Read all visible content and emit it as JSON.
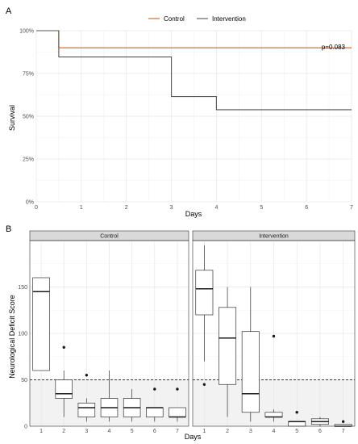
{
  "chart_data": [
    {
      "type": "line",
      "panel_label": "A",
      "xlabel": "Days",
      "ylabel": "Survival",
      "xlim": [
        0,
        7
      ],
      "ylim": [
        0,
        100
      ],
      "x_ticks": [
        0,
        1,
        2,
        3,
        4,
        5,
        6,
        7
      ],
      "y_ticks": [
        0,
        25,
        50,
        75,
        100
      ],
      "y_tick_labels": [
        "0%",
        "25%",
        "50%",
        "75%",
        "100%"
      ],
      "grid": true,
      "legend_position": "top",
      "annotation": "p=0.083",
      "series": [
        {
          "name": "Control",
          "color": "#d95f0e",
          "step_points": [
            [
              0,
              100
            ],
            [
              0.5,
              100
            ],
            [
              0.5,
              90
            ],
            [
              7,
              90
            ]
          ]
        },
        {
          "name": "Intervention",
          "color": "#555555",
          "step_points": [
            [
              0,
              100
            ],
            [
              0.5,
              100
            ],
            [
              0.5,
              84.6
            ],
            [
              3,
              84.6
            ],
            [
              3,
              61.5
            ],
            [
              4,
              61.5
            ],
            [
              4,
              53.8
            ],
            [
              7,
              53.8
            ]
          ]
        }
      ]
    },
    {
      "type": "box",
      "panel_label": "B",
      "xlabel": "Days",
      "ylabel": "Neurological Deficit Score",
      "ylim": [
        0,
        200
      ],
      "y_ticks": [
        0,
        50,
        100,
        150
      ],
      "reference_line": 50,
      "grid": true,
      "facets": [
        {
          "name": "Control",
          "days": [
            1,
            2,
            3,
            4,
            5,
            6,
            7
          ],
          "boxes": [
            {
              "day": 1,
              "min": 60,
              "q1": 60,
              "median": 145,
              "q3": 160,
              "max": 160,
              "outliers": []
            },
            {
              "day": 2,
              "min": 10,
              "q1": 30,
              "median": 35,
              "q3": 50,
              "max": 60,
              "outliers": [
                85
              ]
            },
            {
              "day": 3,
              "min": 5,
              "q1": 10,
              "median": 20,
              "q3": 25,
              "max": 30,
              "outliers": [
                55
              ]
            },
            {
              "day": 4,
              "min": 5,
              "q1": 10,
              "median": 20,
              "q3": 30,
              "max": 60,
              "outliers": []
            },
            {
              "day": 5,
              "min": 5,
              "q1": 10,
              "median": 20,
              "q3": 30,
              "max": 40,
              "outliers": []
            },
            {
              "day": 6,
              "min": 5,
              "q1": 10,
              "median": 20,
              "q3": 20,
              "max": 20,
              "outliers": [
                40
              ]
            },
            {
              "day": 7,
              "min": 5,
              "q1": 10,
              "median": 10,
              "q3": 20,
              "max": 20,
              "outliers": [
                40
              ]
            }
          ]
        },
        {
          "name": "Intervention",
          "days": [
            1,
            2,
            3,
            4,
            5,
            6,
            7
          ],
          "boxes": [
            {
              "day": 1,
              "min": 70,
              "q1": 120,
              "median": 148,
              "q3": 168,
              "max": 195,
              "outliers": [
                45
              ]
            },
            {
              "day": 2,
              "min": 10,
              "q1": 45,
              "median": 95,
              "q3": 128,
              "max": 150,
              "outliers": []
            },
            {
              "day": 3,
              "min": 5,
              "q1": 15,
              "median": 35,
              "q3": 102,
              "max": 150,
              "outliers": []
            },
            {
              "day": 4,
              "min": 5,
              "q1": 10,
              "median": 10,
              "q3": 15,
              "max": 18,
              "outliers": [
                97
              ]
            },
            {
              "day": 5,
              "min": 0,
              "q1": 0,
              "median": 5,
              "q3": 5,
              "max": 5,
              "outliers": [
                15
              ]
            },
            {
              "day": 6,
              "min": 0,
              "q1": 2,
              "median": 5,
              "q3": 8,
              "max": 10,
              "outliers": []
            },
            {
              "day": 7,
              "min": 0,
              "q1": 0,
              "median": 0,
              "q3": 2,
              "max": 2,
              "outliers": [
                5
              ]
            }
          ]
        }
      ]
    }
  ]
}
